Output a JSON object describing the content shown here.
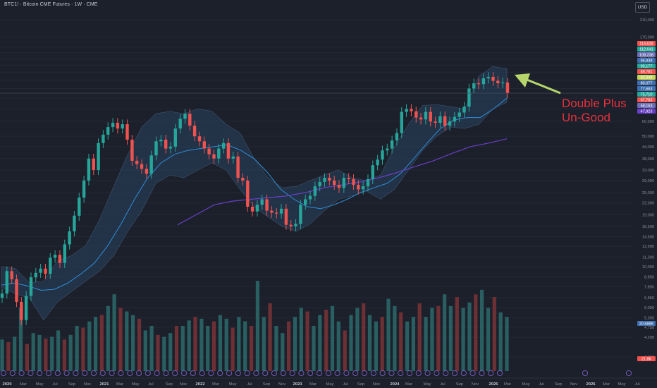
{
  "header": {
    "title": "BTC1! · Bitcoin CME Futures · 1W · CME",
    "currency": "USD"
  },
  "annotation": {
    "line1": "Double Plus",
    "line2": "Un-Good"
  },
  "colors": {
    "background": "#1c202b",
    "up": "#26a69a",
    "down": "#ef5350",
    "annotation": "#e8313d",
    "arrow": "#b6d66b",
    "band_fill": "#2a4a6a",
    "ma_fast": "#2f8fd8",
    "ma_slow": "#6a3fc8"
  },
  "chart_data": {
    "type": "candlestick",
    "title": "BTC1! · Bitcoin CME Futures · 1W · CME",
    "y_scale": "log",
    "ylim": [
      3300,
      210000
    ],
    "y_ticks": [
      "210,000",
      "170,000",
      "150,000",
      "140,000",
      "130,000",
      "120,000",
      "110,000",
      "100,000",
      "90,000",
      "80,000",
      "70,000",
      "60,000",
      "50,000",
      "44,000",
      "38,000",
      "33,000",
      "29,000",
      "25,000",
      "22,000",
      "19,000",
      "16,500",
      "14,500",
      "12,900",
      "11,300",
      "10,050",
      "8,850",
      "7,850",
      "6,850",
      "6,050",
      "5,350",
      "4,750",
      "4,200",
      "3,300"
    ],
    "x_ticks": [
      "2020",
      "Mar",
      "May",
      "Jul",
      "Sep",
      "Nov",
      "2021",
      "Mar",
      "May",
      "Jul",
      "Sep",
      "Nov",
      "2022",
      "Mar",
      "May",
      "Jul",
      "Sep",
      "Nov",
      "2023",
      "Mar",
      "May",
      "Jul",
      "Sep",
      "Nov",
      "2024",
      "Mar",
      "May",
      "Jul",
      "Sep",
      "Nov",
      "2025",
      "Mar",
      "May",
      "Jul",
      "Sep",
      "Nov",
      "2026",
      "Mar",
      "May",
      "Jul"
    ],
    "price_labels": [
      {
        "text": "114,628",
        "color": "#ef5350"
      },
      {
        "text": "112,641",
        "color": "#26a69a"
      },
      {
        "text": "108,238",
        "color": "#6c6fb5"
      },
      {
        "text": "96,938",
        "color": "#3f6fb0"
      },
      {
        "text": "93,177",
        "color": "#26a69a"
      },
      {
        "text": "89,781",
        "color": "#ef5350"
      },
      {
        "text": "82,349",
        "color": "#c6d45e"
      },
      {
        "text": "80,077",
        "color": "#3f6fb0"
      },
      {
        "text": "77,663",
        "color": "#3f6fb0"
      },
      {
        "text": "75,710",
        "color": "#26a69a"
      },
      {
        "text": "67,783",
        "color": "#ef5350"
      },
      {
        "text": "58,163",
        "color": "#6c6fb5"
      },
      {
        "text": "47,923",
        "color": "#6a3fc8"
      }
    ],
    "volume_labels": [
      {
        "text": "20.688K",
        "color": "#3f6fb0"
      },
      {
        "text": "21.8K",
        "color": "#ef5350"
      }
    ],
    "series": [
      {
        "name": "BTC1!",
        "kind": "candles",
        "values": [
          7200,
          9500,
          8600,
          6500,
          5200,
          7000,
          8800,
          9300,
          9800,
          9200,
          11200,
          11600,
          10500,
          13200,
          15500,
          18800,
          23500,
          29000,
          38000,
          33000,
          46000,
          51000,
          56000,
          59000,
          55000,
          58000,
          48000,
          37000,
          35500,
          33500,
          31500,
          39500,
          47000,
          48000,
          43000,
          44000,
          55000,
          62000,
          66000,
          57000,
          50000,
          47000,
          43000,
          40000,
          38000,
          43000,
          46000,
          38000,
          39000,
          30000,
          29000,
          21000,
          19800,
          21500,
          23000,
          20000,
          19500,
          19300,
          20500,
          16800,
          16500,
          17000,
          21500,
          23000,
          24000,
          27000,
          28500,
          30000,
          29000,
          27500,
          26500,
          30000,
          29500,
          27500,
          26000,
          27000,
          29500,
          35000,
          37500,
          42000,
          43000,
          47500,
          52000,
          67500,
          70000,
          68000,
          63000,
          61500,
          67500,
          60000,
          59000,
          64000,
          57000,
          60000,
          63500,
          67000,
          72000,
          90000,
          96000,
          95000,
          102000,
          104000,
          99000,
          96000,
          97000,
          85000
        ]
      },
      {
        "name": "MA fast",
        "kind": "line",
        "values": [
          8000,
          8200,
          7900,
          7500,
          7600,
          8200,
          9200,
          10500,
          13000,
          17000,
          23000,
          30000,
          36000,
          40000,
          42000,
          43000,
          44000,
          45000,
          42000,
          38000,
          32000,
          26000,
          23000,
          21000,
          20500,
          21500,
          23000,
          25000,
          26500,
          28000,
          31500,
          38000,
          46000,
          55000,
          61000,
          63000,
          63000,
          70000,
          80000
        ]
      },
      {
        "name": "MA slow",
        "kind": "line",
        "values": [
          16800,
          19000,
          21500,
          22500,
          23000,
          23500,
          24000,
          25000,
          26500,
          27500,
          28500,
          30000,
          32000,
          34500,
          37000,
          40500,
          44000,
          46000,
          48500
        ]
      },
      {
        "name": "Band upper",
        "kind": "band_upper",
        "values": [
          10000,
          9800,
          8200,
          8400,
          10800,
          11500,
          13000,
          18000,
          27000,
          40000,
          56000,
          66000,
          68000,
          66000,
          70000,
          68000,
          58000,
          52000,
          38000,
          30000,
          26500,
          27000,
          29000,
          31000,
          33000,
          30000,
          29000,
          31000,
          44000,
          58000,
          73000,
          74000,
          72000,
          70000,
          105000,
          118000,
          115000
        ]
      },
      {
        "name": "Band lower",
        "kind": "band_lower",
        "values": [
          7800,
          7200,
          6800,
          5200,
          6500,
          7400,
          8400,
          9500,
          11500,
          15500,
          20000,
          28000,
          31000,
          30000,
          33000,
          36000,
          33000,
          26000,
          21000,
          18500,
          16500,
          15500,
          17000,
          20000,
          23000,
          24000,
          25500,
          23000,
          26000,
          33000,
          42000,
          50000,
          56000,
          55000,
          58000,
          70000,
          76000
        ]
      },
      {
        "name": "Volume",
        "kind": "volume",
        "values": [
          0.35,
          0.32,
          0.38,
          0.7,
          0.3,
          0.42,
          0.4,
          0.36,
          0.38,
          0.45,
          0.35,
          0.4,
          0.5,
          0.48,
          0.55,
          0.6,
          0.62,
          0.72,
          0.85,
          0.7,
          0.66,
          0.62,
          0.58,
          0.45,
          0.5,
          0.4,
          0.38,
          0.42,
          0.5,
          0.5,
          0.56,
          0.6,
          0.58,
          0.5,
          0.55,
          0.62,
          0.58,
          0.48,
          0.6,
          0.55,
          0.5,
          1.0,
          0.6,
          0.75,
          0.5,
          0.42,
          0.55,
          0.6,
          0.7,
          0.66,
          0.5,
          0.62,
          0.68,
          0.72,
          0.55,
          0.45,
          0.62,
          0.7,
          0.75,
          0.62,
          0.55,
          0.6,
          0.8,
          0.72,
          0.65,
          0.55,
          0.6,
          0.75,
          0.6,
          0.7,
          0.72,
          0.85,
          0.72,
          0.82,
          0.7,
          0.76,
          0.85,
          0.9,
          0.7,
          0.82,
          0.65,
          0.6
        ]
      }
    ]
  }
}
